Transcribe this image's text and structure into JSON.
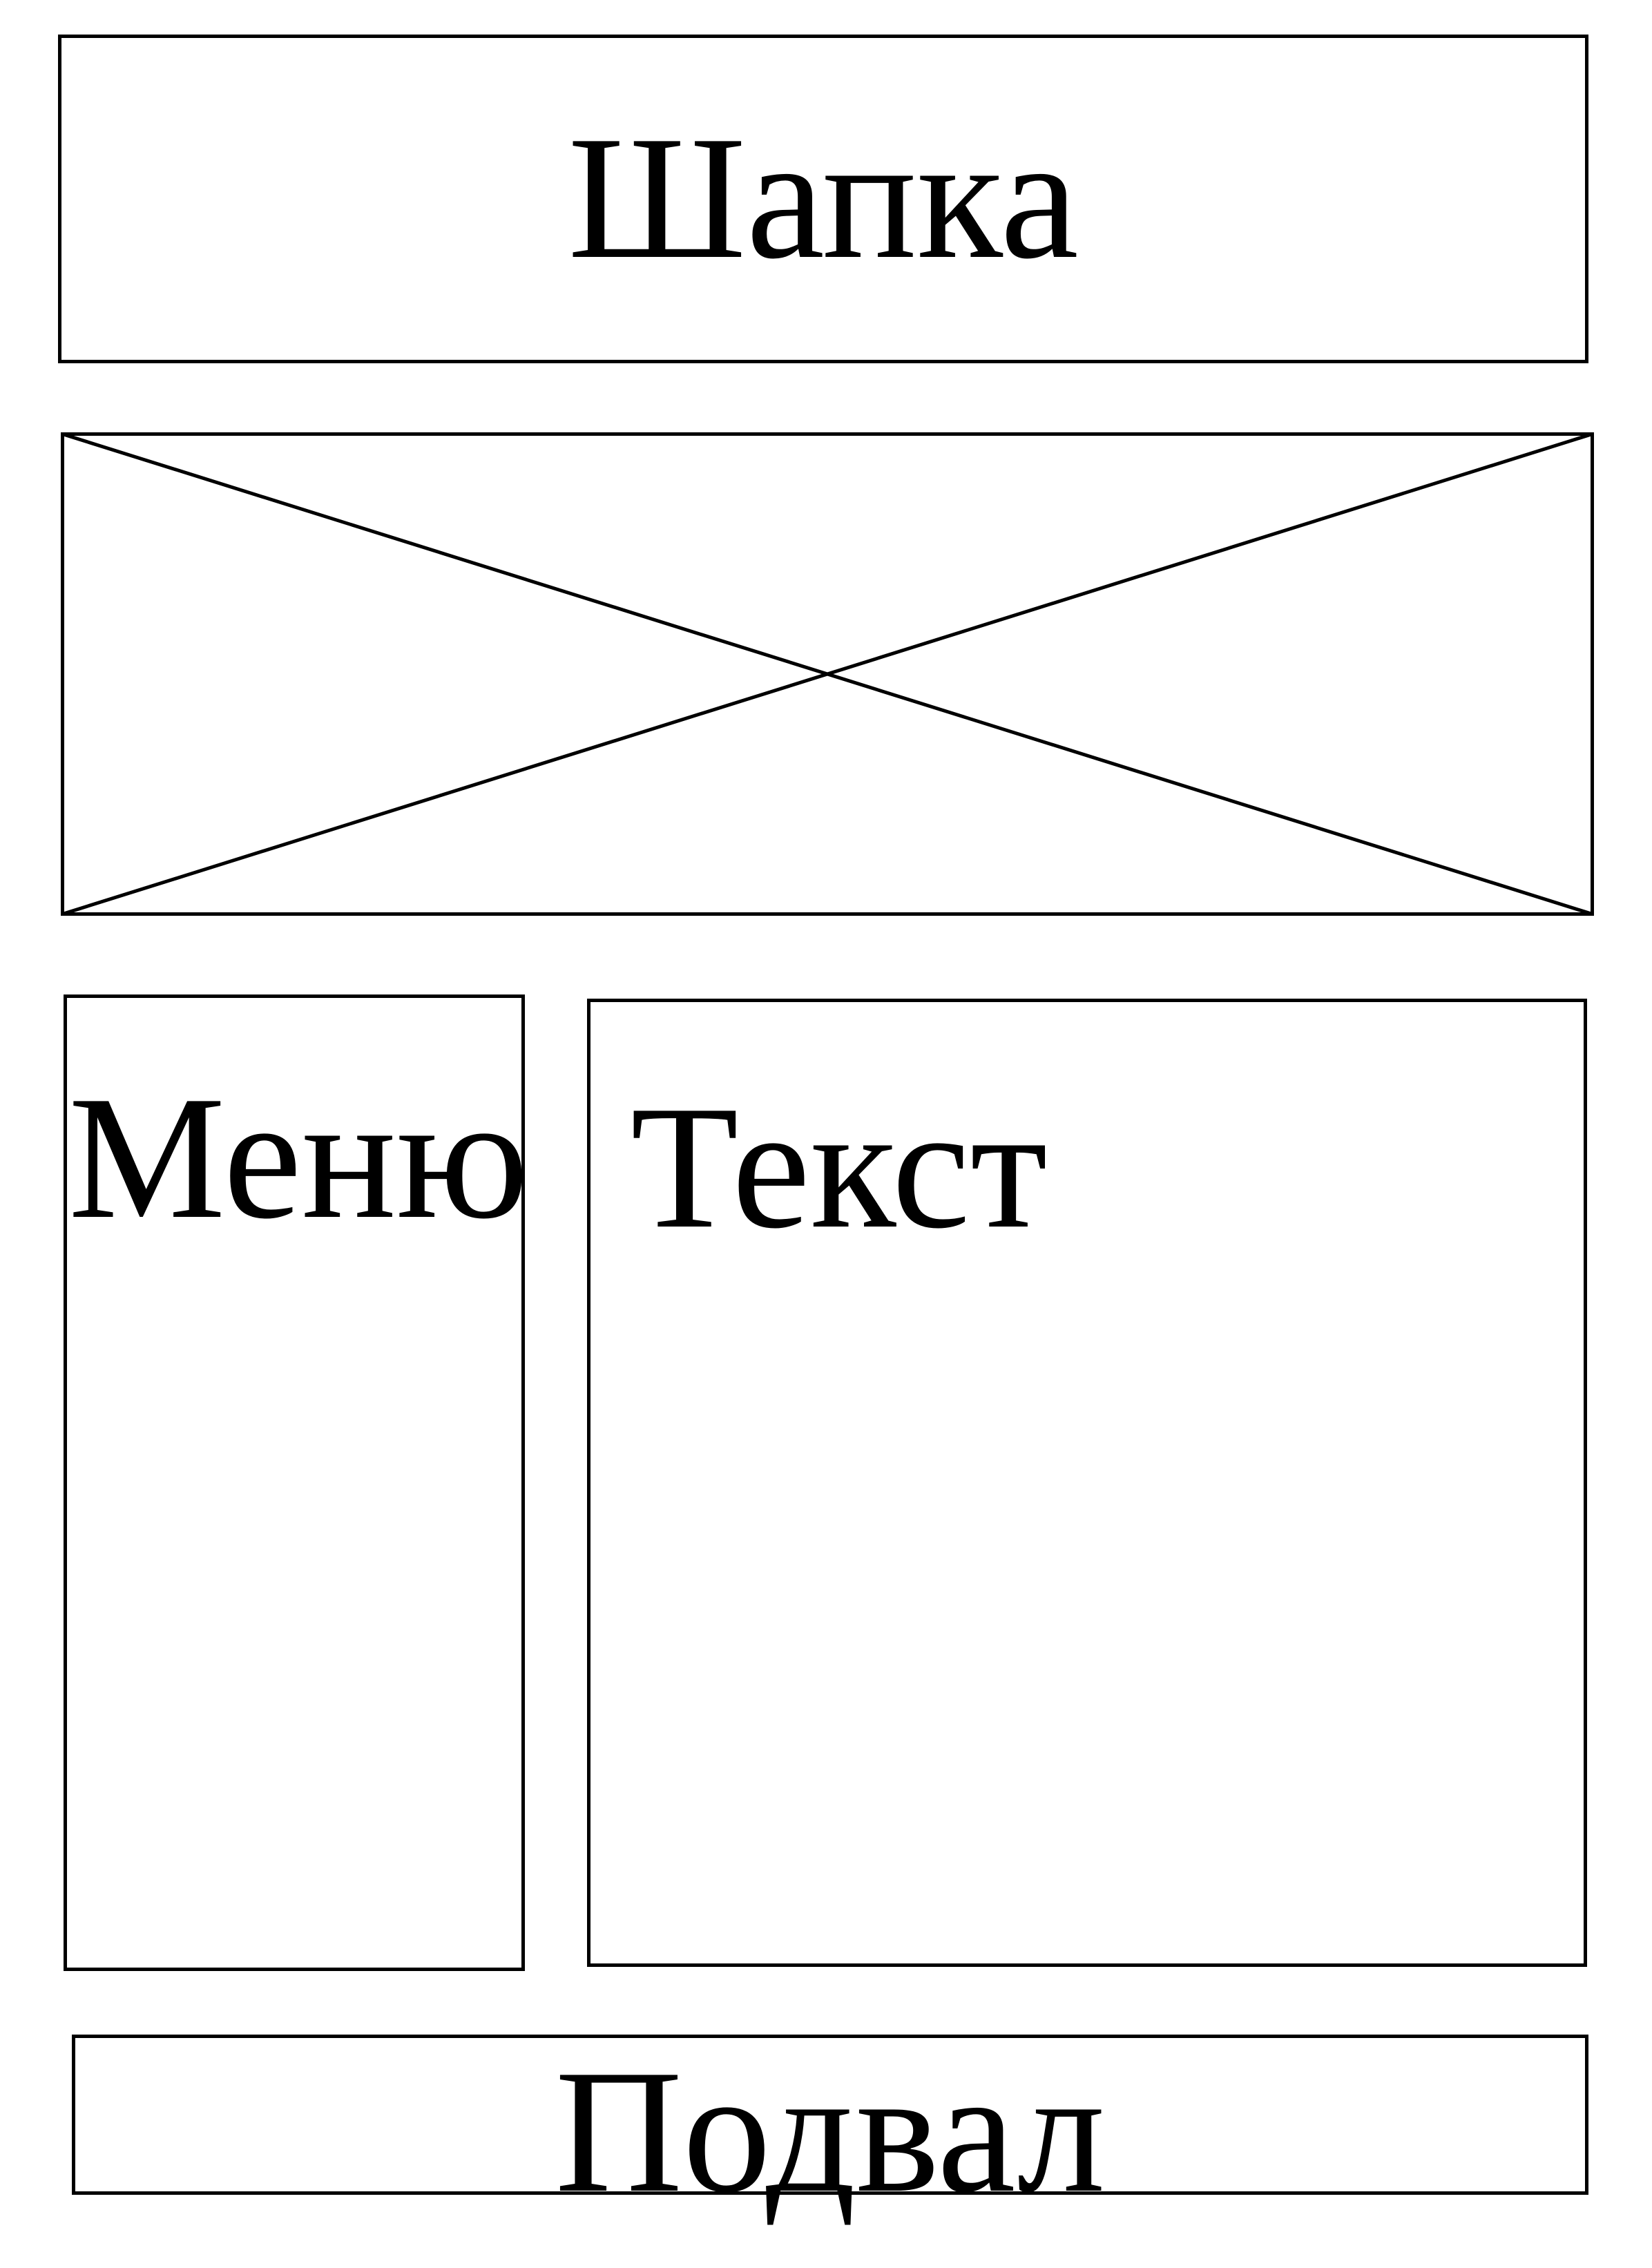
{
  "header": {
    "label": "Шапка"
  },
  "image_placeholder": {
    "icon": "image-placeholder-icon"
  },
  "menu": {
    "label": "Меню"
  },
  "content": {
    "label": "Текст"
  },
  "footer": {
    "label": "Подвал"
  },
  "colors": {
    "stroke": "#000000",
    "background": "#ffffff"
  }
}
